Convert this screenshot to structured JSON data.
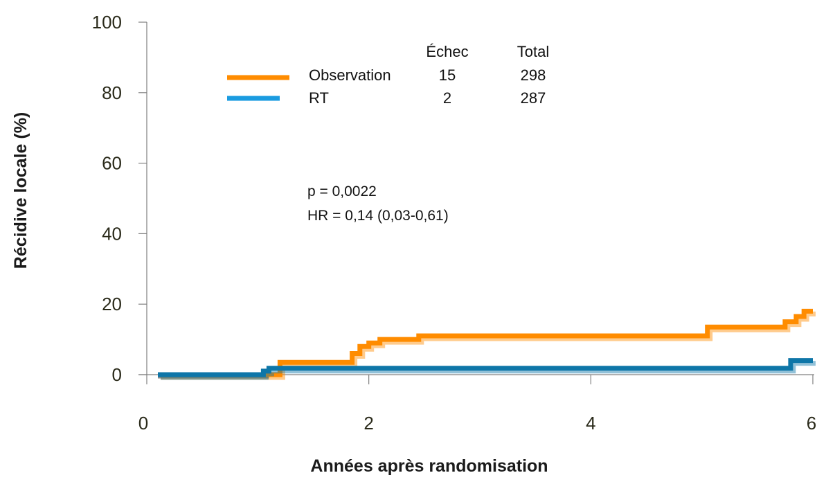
{
  "chart_data": {
    "type": "line",
    "xlabel": "Années après randomisation",
    "ylabel": "Récidive locale (%)",
    "xlim": [
      0,
      6
    ],
    "ylim": [
      0,
      100
    ],
    "x_ticks": [
      "0",
      "2",
      "4",
      "6"
    ],
    "y_ticks": [
      "0",
      "20",
      "40",
      "60",
      "80",
      "100"
    ],
    "grid": false,
    "legend_position": "top-left",
    "legend_headers": {
      "failures": "Échec",
      "total": "Total"
    },
    "series": [
      {
        "name": "Observation",
        "failures": "15",
        "total": "298",
        "color": "#ff8c00",
        "x": [
          0.1,
          1.2,
          1.2,
          1.85,
          1.85,
          1.92,
          1.92,
          2.0,
          2.0,
          2.1,
          2.1,
          2.45,
          2.45,
          5.05,
          5.05,
          5.75,
          5.75,
          5.85,
          5.85,
          5.92,
          5.92,
          6.0
        ],
        "y": [
          0,
          0,
          3.5,
          3.5,
          6,
          6,
          8,
          8,
          9,
          9,
          10,
          10,
          11,
          11,
          13.5,
          13.5,
          15,
          15,
          16.5,
          16.5,
          18,
          18
        ]
      },
      {
        "name": "RT",
        "failures": "2",
        "total": "287",
        "color": "#0e76a8",
        "x": [
          0.1,
          1.05,
          1.05,
          1.1,
          1.1,
          5.8,
          5.8,
          6.0
        ],
        "y": [
          0,
          0,
          1,
          1,
          1.8,
          1.8,
          4,
          4
        ]
      }
    ],
    "annotations": [
      "p = 0,0022",
      "HR = 0,14 (0,03-0,61)"
    ]
  }
}
